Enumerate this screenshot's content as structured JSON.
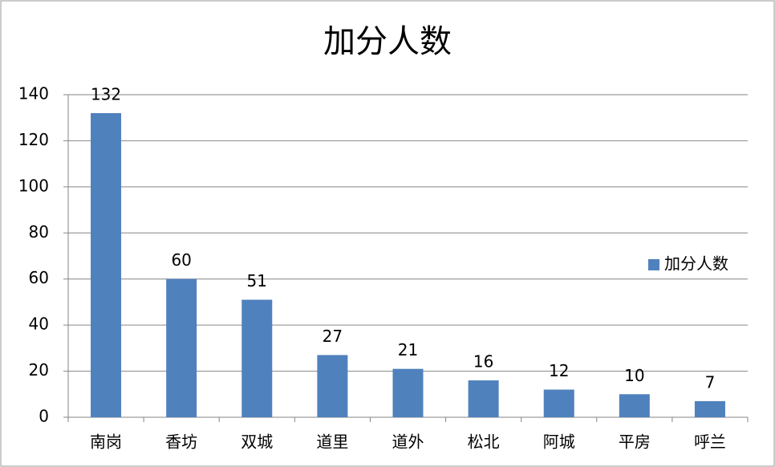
{
  "chart_data": {
    "type": "bar",
    "title": "加分人数",
    "categories": [
      "南岗",
      "香坊",
      "双城",
      "道里",
      "道外",
      "松北",
      "阿城",
      "平房",
      "呼兰"
    ],
    "series": [
      {
        "name": "加分人数",
        "color": "#4f81bd",
        "values": [
          132,
          60,
          51,
          27,
          21,
          16,
          12,
          10,
          7
        ]
      }
    ],
    "ylim": [
      0,
      140
    ],
    "yticks": [
      0,
      20,
      40,
      60,
      80,
      100,
      120,
      140
    ],
    "grid": true,
    "legend": "right"
  }
}
